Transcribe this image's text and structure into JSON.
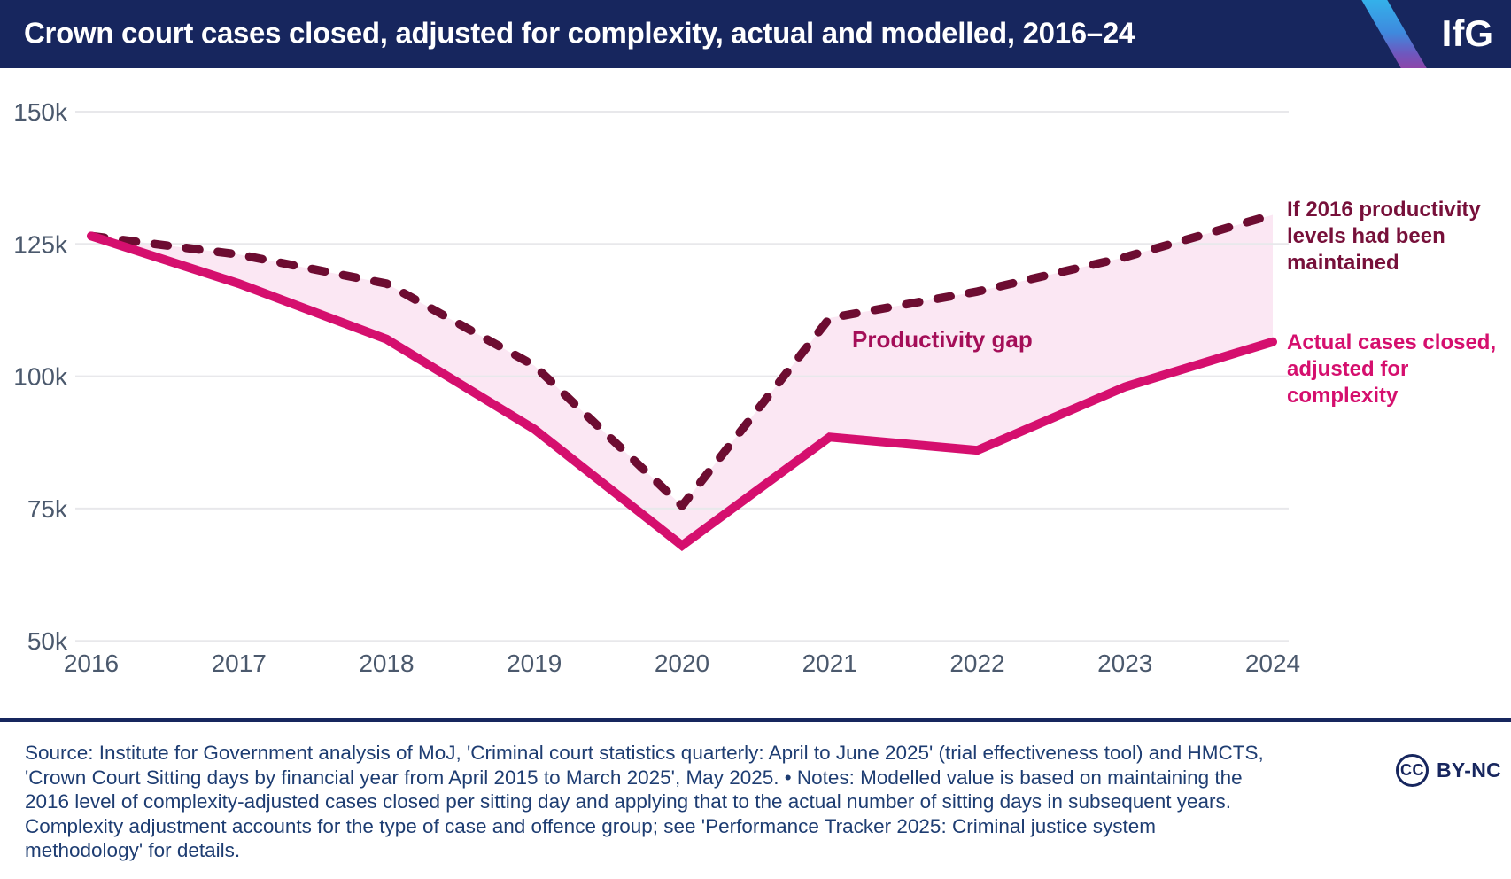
{
  "header": {
    "title": "Crown court cases closed, adjusted for complexity, actual and modelled, 2016–24",
    "logo": "IfG"
  },
  "chart_data": {
    "type": "line",
    "title": "Crown court cases closed, adjusted for complexity, actual and modelled, 2016–24",
    "x": [
      2016,
      2017,
      2018,
      2019,
      2020,
      2021,
      2022,
      2023,
      2024
    ],
    "series": [
      {
        "name": "If 2016 productivity levels had been maintained",
        "style": "dashed",
        "values_thousands": [
          126.5,
          123,
          117.5,
          102,
          75.5,
          111,
          116,
          122.5,
          130.5
        ]
      },
      {
        "name": "Actual cases closed, adjusted for complexity",
        "style": "solid",
        "values_thousands": [
          126.5,
          117.5,
          107,
          90,
          68,
          88.5,
          86,
          98,
          106.5
        ]
      }
    ],
    "area_between_series_label": "Productivity gap",
    "y_ticks": [
      {
        "value": 150,
        "label": "150k"
      },
      {
        "value": 125,
        "label": "125k"
      },
      {
        "value": 100,
        "label": "100k"
      },
      {
        "value": 75,
        "label": "75k"
      },
      {
        "value": 50,
        "label": "50k"
      }
    ],
    "ylim": [
      50,
      150
    ],
    "xlabel": "",
    "ylabel": "",
    "grid": "horizontal",
    "legend_position": "right-edge annotations"
  },
  "annotations": {
    "gap": "Productivity gap",
    "modelled": "If 2016 productivity\nlevels had been\nmaintained",
    "actual": "Actual cases closed,\nadjusted for\ncomplexity"
  },
  "footer": {
    "source_note": "Source: Institute for Government analysis of MoJ, 'Criminal court statistics quarterly: April to June 2025' (trial effectiveness tool) and HMCTS, 'Crown Court Sitting days by financial year from April 2015 to March 2025', May 2025. • Notes: Modelled value is based on maintaining the 2016 level of complexity-adjusted cases closed per sitting day and applying that to the actual number of sitting days in subsequent years. Complexity adjustment accounts for the type of case and offence group; see 'Performance Tracker 2025: Criminal justice system methodology' for details.",
    "cc_label": "CC",
    "license": "BY-NC"
  },
  "colors": {
    "header_navy": "#17265e",
    "footer_text_navy": "#1e3d72",
    "line_modelled": "#6d0c31",
    "line_actual": "#d50f6e",
    "area_fill": "#fbe7f3",
    "gap_label": "#a40e58",
    "annotation_modelled": "#77103a",
    "annotation_actual": "#d50f6e",
    "tick_text": "#4b596d",
    "gridline": "#e8e8eb",
    "stripe_top": "#33b5eb",
    "stripe_bottom": "#9c3e9d"
  }
}
